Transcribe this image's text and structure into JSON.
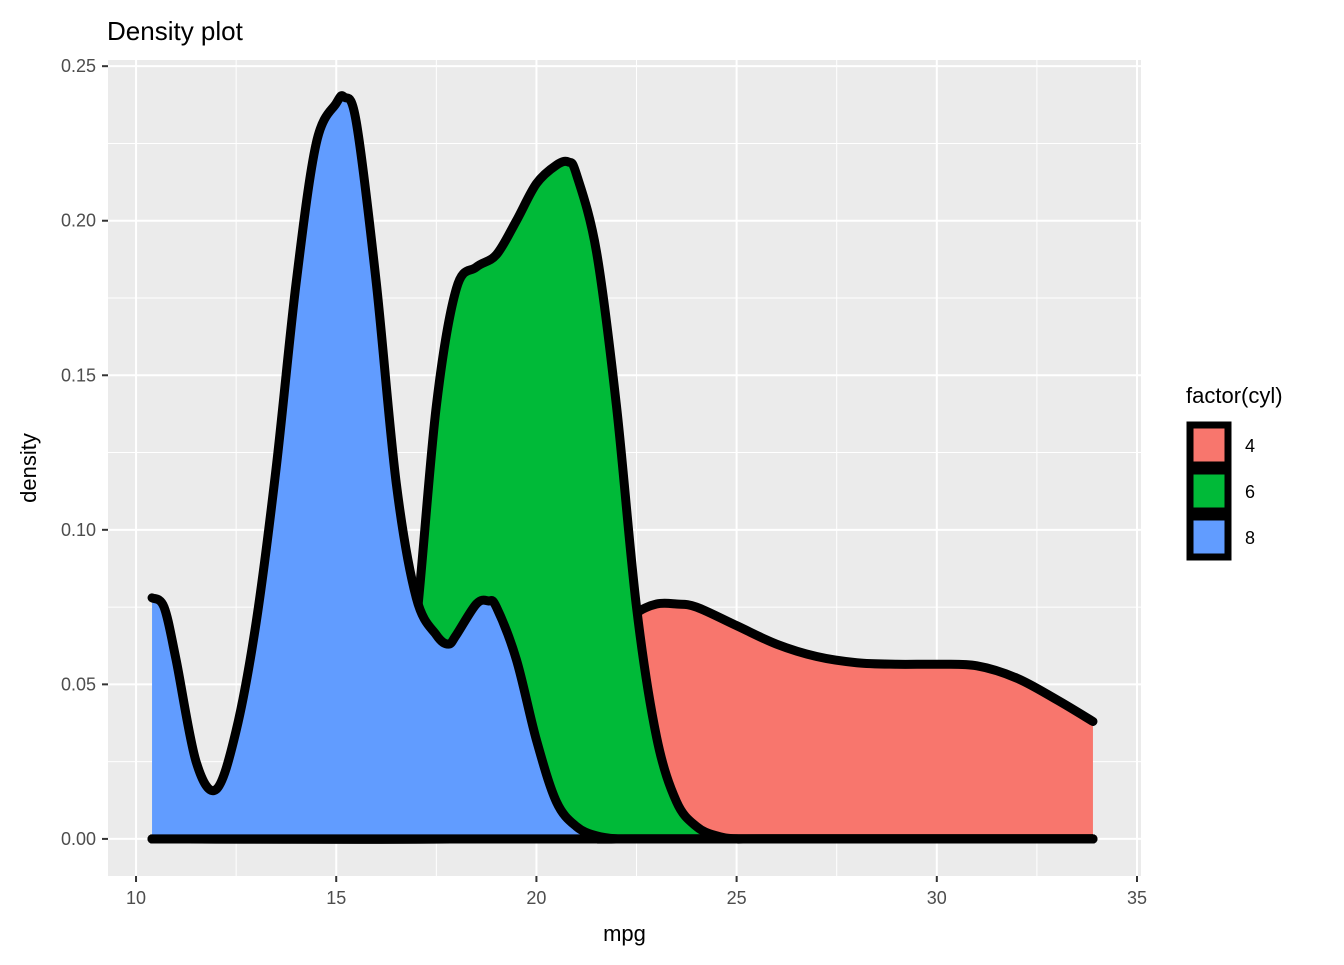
{
  "chart_data": {
    "type": "area",
    "title": "Density plot",
    "xlabel": "mpg",
    "ylabel": "density",
    "xlim": [
      9.3,
      35.1
    ],
    "ylim": [
      -0.012,
      0.252
    ],
    "x_ticks": [
      10,
      15,
      20,
      25,
      30,
      35
    ],
    "x_tick_labels": [
      "10",
      "15",
      "20",
      "25",
      "30",
      "35"
    ],
    "x_minor": [
      12.5,
      17.5,
      22.5,
      27.5,
      32.5
    ],
    "y_ticks": [
      0,
      0.05,
      0.1,
      0.15,
      0.2,
      0.25
    ],
    "y_tick_labels": [
      "0.00",
      "0.05",
      "0.10",
      "0.15",
      "0.20",
      "0.25"
    ],
    "y_minor": [
      0.025,
      0.075,
      0.125,
      0.175,
      0.225
    ],
    "grid": true,
    "legend": {
      "title": "factor(cyl)",
      "position": "right",
      "entries": [
        {
          "label": "4",
          "color": "#F8766D"
        },
        {
          "label": "6",
          "color": "#00BA38"
        },
        {
          "label": "8",
          "color": "#619CFF"
        }
      ]
    },
    "series": [
      {
        "name": "4",
        "color": "#F8766D",
        "x": [
          10.4,
          18.0,
          20.0,
          21.0,
          21.5,
          22.0,
          22.3,
          22.5,
          23.0,
          23.5,
          24.0,
          25.0,
          26.0,
          27.0,
          28.0,
          29.0,
          30.0,
          31.0,
          32.0,
          33.0,
          33.9
        ],
        "y": [
          0.0,
          0.0,
          0.002,
          0.01,
          0.025,
          0.05,
          0.068,
          0.073,
          0.076,
          0.076,
          0.075,
          0.069,
          0.063,
          0.059,
          0.057,
          0.0565,
          0.0565,
          0.056,
          0.052,
          0.045,
          0.038
        ]
      },
      {
        "name": "6",
        "color": "#00BA38",
        "x": [
          10.4,
          15.0,
          15.5,
          16.0,
          16.5,
          17.0,
          17.5,
          18.0,
          18.5,
          19.0,
          19.5,
          20.0,
          20.5,
          20.8,
          21.0,
          21.5,
          22.0,
          22.5,
          23.0,
          23.5,
          24.0,
          24.5,
          25.0,
          26.0,
          33.9
        ],
        "y": [
          0.0,
          0.0,
          0.001,
          0.005,
          0.02,
          0.07,
          0.14,
          0.178,
          0.185,
          0.189,
          0.2,
          0.212,
          0.218,
          0.219,
          0.215,
          0.19,
          0.14,
          0.075,
          0.033,
          0.012,
          0.004,
          0.001,
          0.0,
          0.0,
          0.0
        ]
      },
      {
        "name": "8",
        "color": "#619CFF",
        "x": [
          10.4,
          10.7,
          11.0,
          11.5,
          12.0,
          12.5,
          13.0,
          13.5,
          14.0,
          14.5,
          15.0,
          15.2,
          15.5,
          16.0,
          16.5,
          17.0,
          17.5,
          17.8,
          18.0,
          18.5,
          18.8,
          19.0,
          19.5,
          20.0,
          20.5,
          21.0,
          21.5,
          22.0,
          22.5,
          33.9
        ],
        "y": [
          0.078,
          0.075,
          0.058,
          0.025,
          0.016,
          0.035,
          0.07,
          0.12,
          0.18,
          0.225,
          0.238,
          0.24,
          0.232,
          0.18,
          0.115,
          0.078,
          0.066,
          0.063,
          0.066,
          0.076,
          0.077,
          0.075,
          0.058,
          0.032,
          0.012,
          0.004,
          0.001,
          0.0,
          0.0,
          0.0
        ]
      }
    ]
  }
}
